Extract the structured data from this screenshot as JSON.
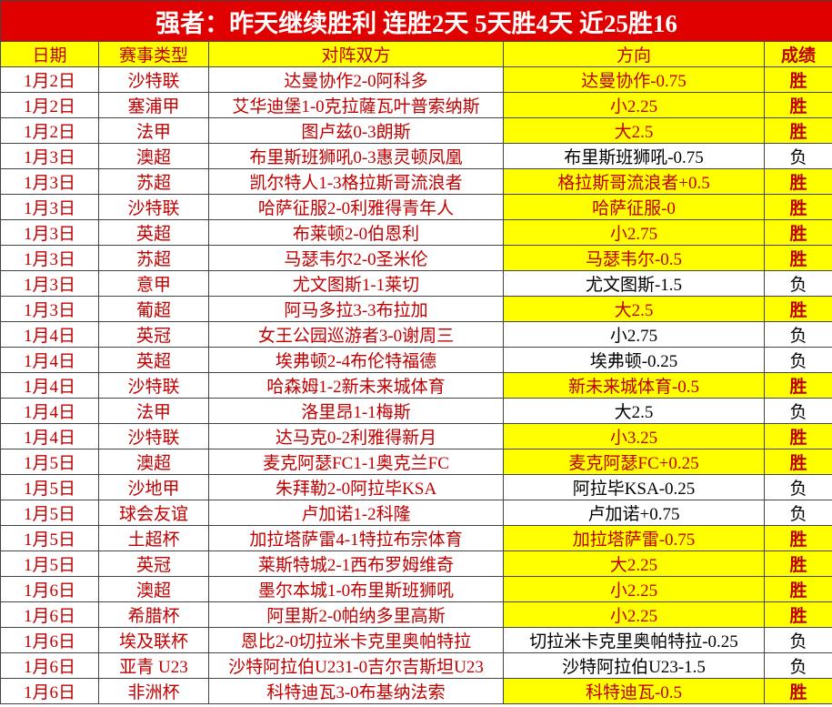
{
  "title": "强者：昨天继续胜利 连胜2天 5天胜4天 近25胜16",
  "table": {
    "header": [
      "日期",
      "赛事类型",
      "对阵双方",
      "方向",
      "成绩"
    ],
    "rows": [
      {
        "cells": [
          "1月2日",
          "沙特联",
          "达曼协作2-0阿科多",
          "达曼协作-0.75",
          "胜"
        ],
        "highlight": true
      },
      {
        "cells": [
          "1月2日",
          "塞浦甲",
          "艾华迪堡1-0克拉薩瓦叶普索纳斯",
          "小2.25",
          "胜"
        ],
        "highlight": true
      },
      {
        "cells": [
          "1月2日",
          "法甲",
          "图卢兹0-3朗斯",
          "大2.5",
          "胜"
        ],
        "highlight": true
      },
      {
        "cells": [
          "1月3日",
          "澳超",
          "布里斯班狮吼0-3惠灵顿凤凰",
          "布里斯班狮吼-0.75",
          "负"
        ],
        "highlight": false
      },
      {
        "cells": [
          "1月3日",
          "苏超",
          "凯尔特人1-3格拉斯哥流浪者",
          "格拉斯哥流浪者+0.5",
          "胜"
        ],
        "highlight": true
      },
      {
        "cells": [
          "1月3日",
          "沙特联",
          "哈萨征服2-0利雅得青年人",
          "哈萨征服-0",
          "胜"
        ],
        "highlight": true
      },
      {
        "cells": [
          "1月3日",
          "英超",
          "布莱顿2-0伯恩利",
          "小2.75",
          "胜"
        ],
        "highlight": true
      },
      {
        "cells": [
          "1月3日",
          "苏超",
          "马瑟韦尔2-0圣米伦",
          "马瑟韦尔-0.5",
          "胜"
        ],
        "highlight": true
      },
      {
        "cells": [
          "1月3日",
          "意甲",
          "尤文图斯1-1莱切",
          "尤文图斯-1.5",
          "负"
        ],
        "highlight": false
      },
      {
        "cells": [
          "1月3日",
          "葡超",
          "阿马多拉3-3布拉加",
          "大2.5",
          "胜"
        ],
        "highlight": true
      },
      {
        "cells": [
          "1月4日",
          "英冠",
          "女王公园巡游者3-0谢周三",
          "小2.75",
          "负"
        ],
        "highlight": false
      },
      {
        "cells": [
          "1月4日",
          "英超",
          "埃弗顿2-4布伦特福德",
          "埃弗顿-0.25",
          "负"
        ],
        "highlight": false
      },
      {
        "cells": [
          "1月4日",
          "沙特联",
          "哈森姆1-2新未来城体育",
          "新未来城体育-0.5",
          "胜"
        ],
        "highlight": true
      },
      {
        "cells": [
          "1月4日",
          "法甲",
          "洛里昂1-1梅斯",
          "大2.5",
          "负"
        ],
        "highlight": false
      },
      {
        "cells": [
          "1月4日",
          "沙特联",
          "达马克0-2利雅得新月",
          "小3.25",
          "胜"
        ],
        "highlight": true
      },
      {
        "cells": [
          "1月5日",
          "澳超",
          "麦克阿瑟FC1-1奥克兰FC",
          "麦克阿瑟FC+0.25",
          "胜"
        ],
        "highlight": true
      },
      {
        "cells": [
          "1月5日",
          "沙地甲",
          "朱拜勒2-0阿拉毕KSA",
          "阿拉毕KSA-0.25",
          "负"
        ],
        "highlight": false
      },
      {
        "cells": [
          "1月5日",
          "球会友谊",
          "卢加诺1-2科隆",
          "卢加诺+0.75",
          "负"
        ],
        "highlight": false
      },
      {
        "cells": [
          "1月5日",
          "土超杯",
          "加拉塔萨雷4-1特拉布宗体育",
          "加拉塔萨雷-0.75",
          "胜"
        ],
        "highlight": true
      },
      {
        "cells": [
          "1月5日",
          "英冠",
          "莱斯特城2-1西布罗姆维奇",
          "大2.25",
          "胜"
        ],
        "highlight": true
      },
      {
        "cells": [
          "1月6日",
          "澳超",
          "墨尔本城1-0布里斯班狮吼",
          "小2.25",
          "胜"
        ],
        "highlight": true
      },
      {
        "cells": [
          "1月6日",
          "希腊杯",
          "阿里斯2-0帕纳多里高斯",
          "小2.25",
          "胜"
        ],
        "highlight": true
      },
      {
        "cells": [
          "1月6日",
          "埃及联杯",
          "恩比2-0切拉米卡克里奥帕特拉",
          "切拉米卡克里奥帕特拉-0.25",
          "负"
        ],
        "highlight": false
      },
      {
        "cells": [
          "1月6日",
          "亚青 U23",
          "沙特阿拉伯U231-0吉尔吉斯坦U23",
          "沙特阿拉伯U23-1.5",
          "负"
        ],
        "highlight": false
      },
      {
        "cells": [
          "1月6日",
          "非洲杯",
          "科特迪瓦3-0布基纳法索",
          "科特迪瓦-0.5",
          "胜"
        ],
        "highlight": true
      }
    ]
  }
}
